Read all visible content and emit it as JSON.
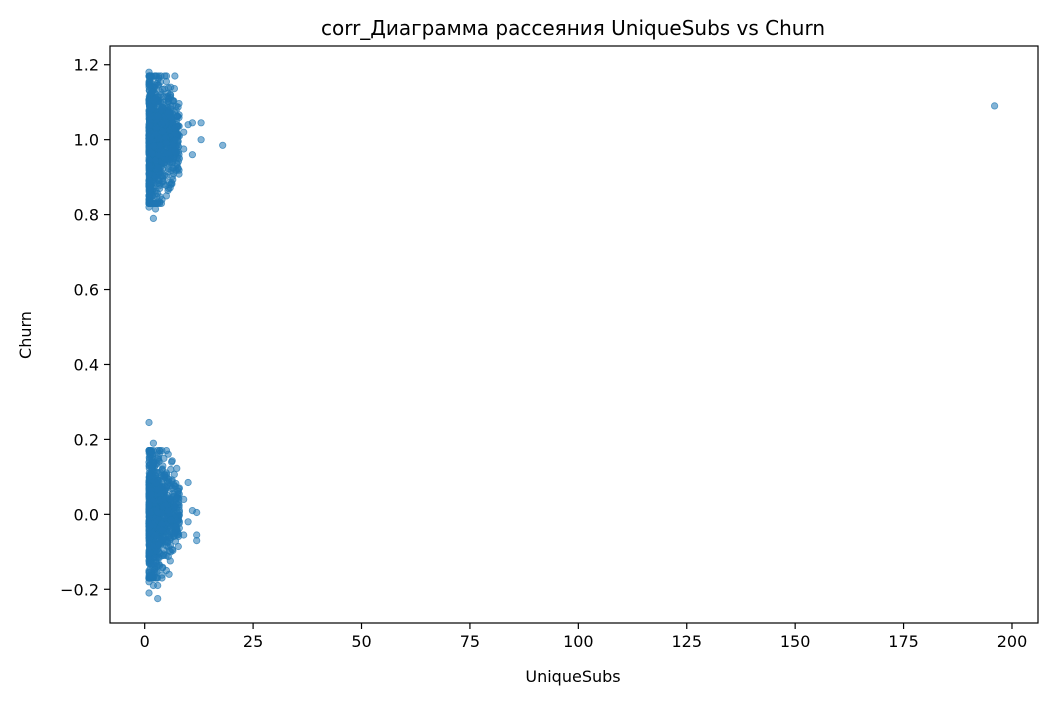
{
  "chart_data": {
    "type": "scatter",
    "title": "corr_Диаграмма рассеяния UniqueSubs vs Churn",
    "xlabel": "UniqueSubs",
    "ylabel": "Churn",
    "xlim": [
      -8,
      206
    ],
    "ylim": [
      -0.29,
      1.25
    ],
    "x_ticks": [
      0,
      25,
      50,
      75,
      100,
      125,
      150,
      175,
      200
    ],
    "x_tick_labels": [
      "0",
      "25",
      "50",
      "75",
      "100",
      "125",
      "150",
      "175",
      "200"
    ],
    "y_ticks": [
      -0.2,
      0.0,
      0.2,
      0.4,
      0.6,
      0.8,
      1.0,
      1.2
    ],
    "y_tick_labels": [
      "−0.2",
      "0.0",
      "0.2",
      "0.4",
      "0.6",
      "0.8",
      "1.0",
      "1.2"
    ],
    "grid": false,
    "legend": "none",
    "marker_color": "#1f77b4",
    "marker_alpha": 0.55,
    "points": [
      [
        196,
        1.09
      ],
      [
        18,
        0.985
      ],
      [
        13,
        1.045
      ],
      [
        13,
        1.0
      ],
      [
        11,
        1.045
      ],
      [
        11,
        0.96
      ],
      [
        10,
        1.04
      ],
      [
        9,
        1.02
      ],
      [
        9,
        0.975
      ],
      [
        8,
        1.01
      ],
      [
        8,
        0.95
      ],
      [
        7,
        1.03
      ],
      [
        7,
        0.97
      ],
      [
        6,
        1.14
      ],
      [
        6,
        1.06
      ],
      [
        6,
        0.88
      ],
      [
        5,
        1.155
      ],
      [
        5,
        0.85
      ],
      [
        4,
        0.84
      ],
      [
        3,
        0.83
      ],
      [
        2.5,
        0.815
      ],
      [
        2,
        0.79
      ],
      [
        1,
        1.18
      ],
      [
        1,
        0.82
      ],
      [
        12,
        0.005
      ],
      [
        12,
        -0.07
      ],
      [
        12,
        -0.055
      ],
      [
        11,
        0.01
      ],
      [
        10,
        0.085
      ],
      [
        10,
        -0.02
      ],
      [
        9,
        -0.055
      ],
      [
        9,
        0.04
      ],
      [
        8,
        0.07
      ],
      [
        8,
        -0.02
      ],
      [
        7,
        -0.05
      ],
      [
        7,
        0.02
      ],
      [
        6,
        0.12
      ],
      [
        6,
        -0.1
      ],
      [
        5,
        -0.15
      ],
      [
        4,
        -0.17
      ],
      [
        3,
        -0.19
      ],
      [
        3,
        -0.225
      ],
      [
        1,
        0.245
      ],
      [
        1,
        -0.21
      ],
      [
        1,
        -0.18
      ],
      [
        2,
        0.19
      ],
      [
        2,
        -0.19
      ]
    ],
    "clusters": [
      {
        "center": 1.0,
        "spread": 0.095,
        "x_range": [
          1,
          8
        ]
      },
      {
        "center": 0.0,
        "spread": 0.085,
        "x_range": [
          1,
          8
        ]
      }
    ]
  }
}
